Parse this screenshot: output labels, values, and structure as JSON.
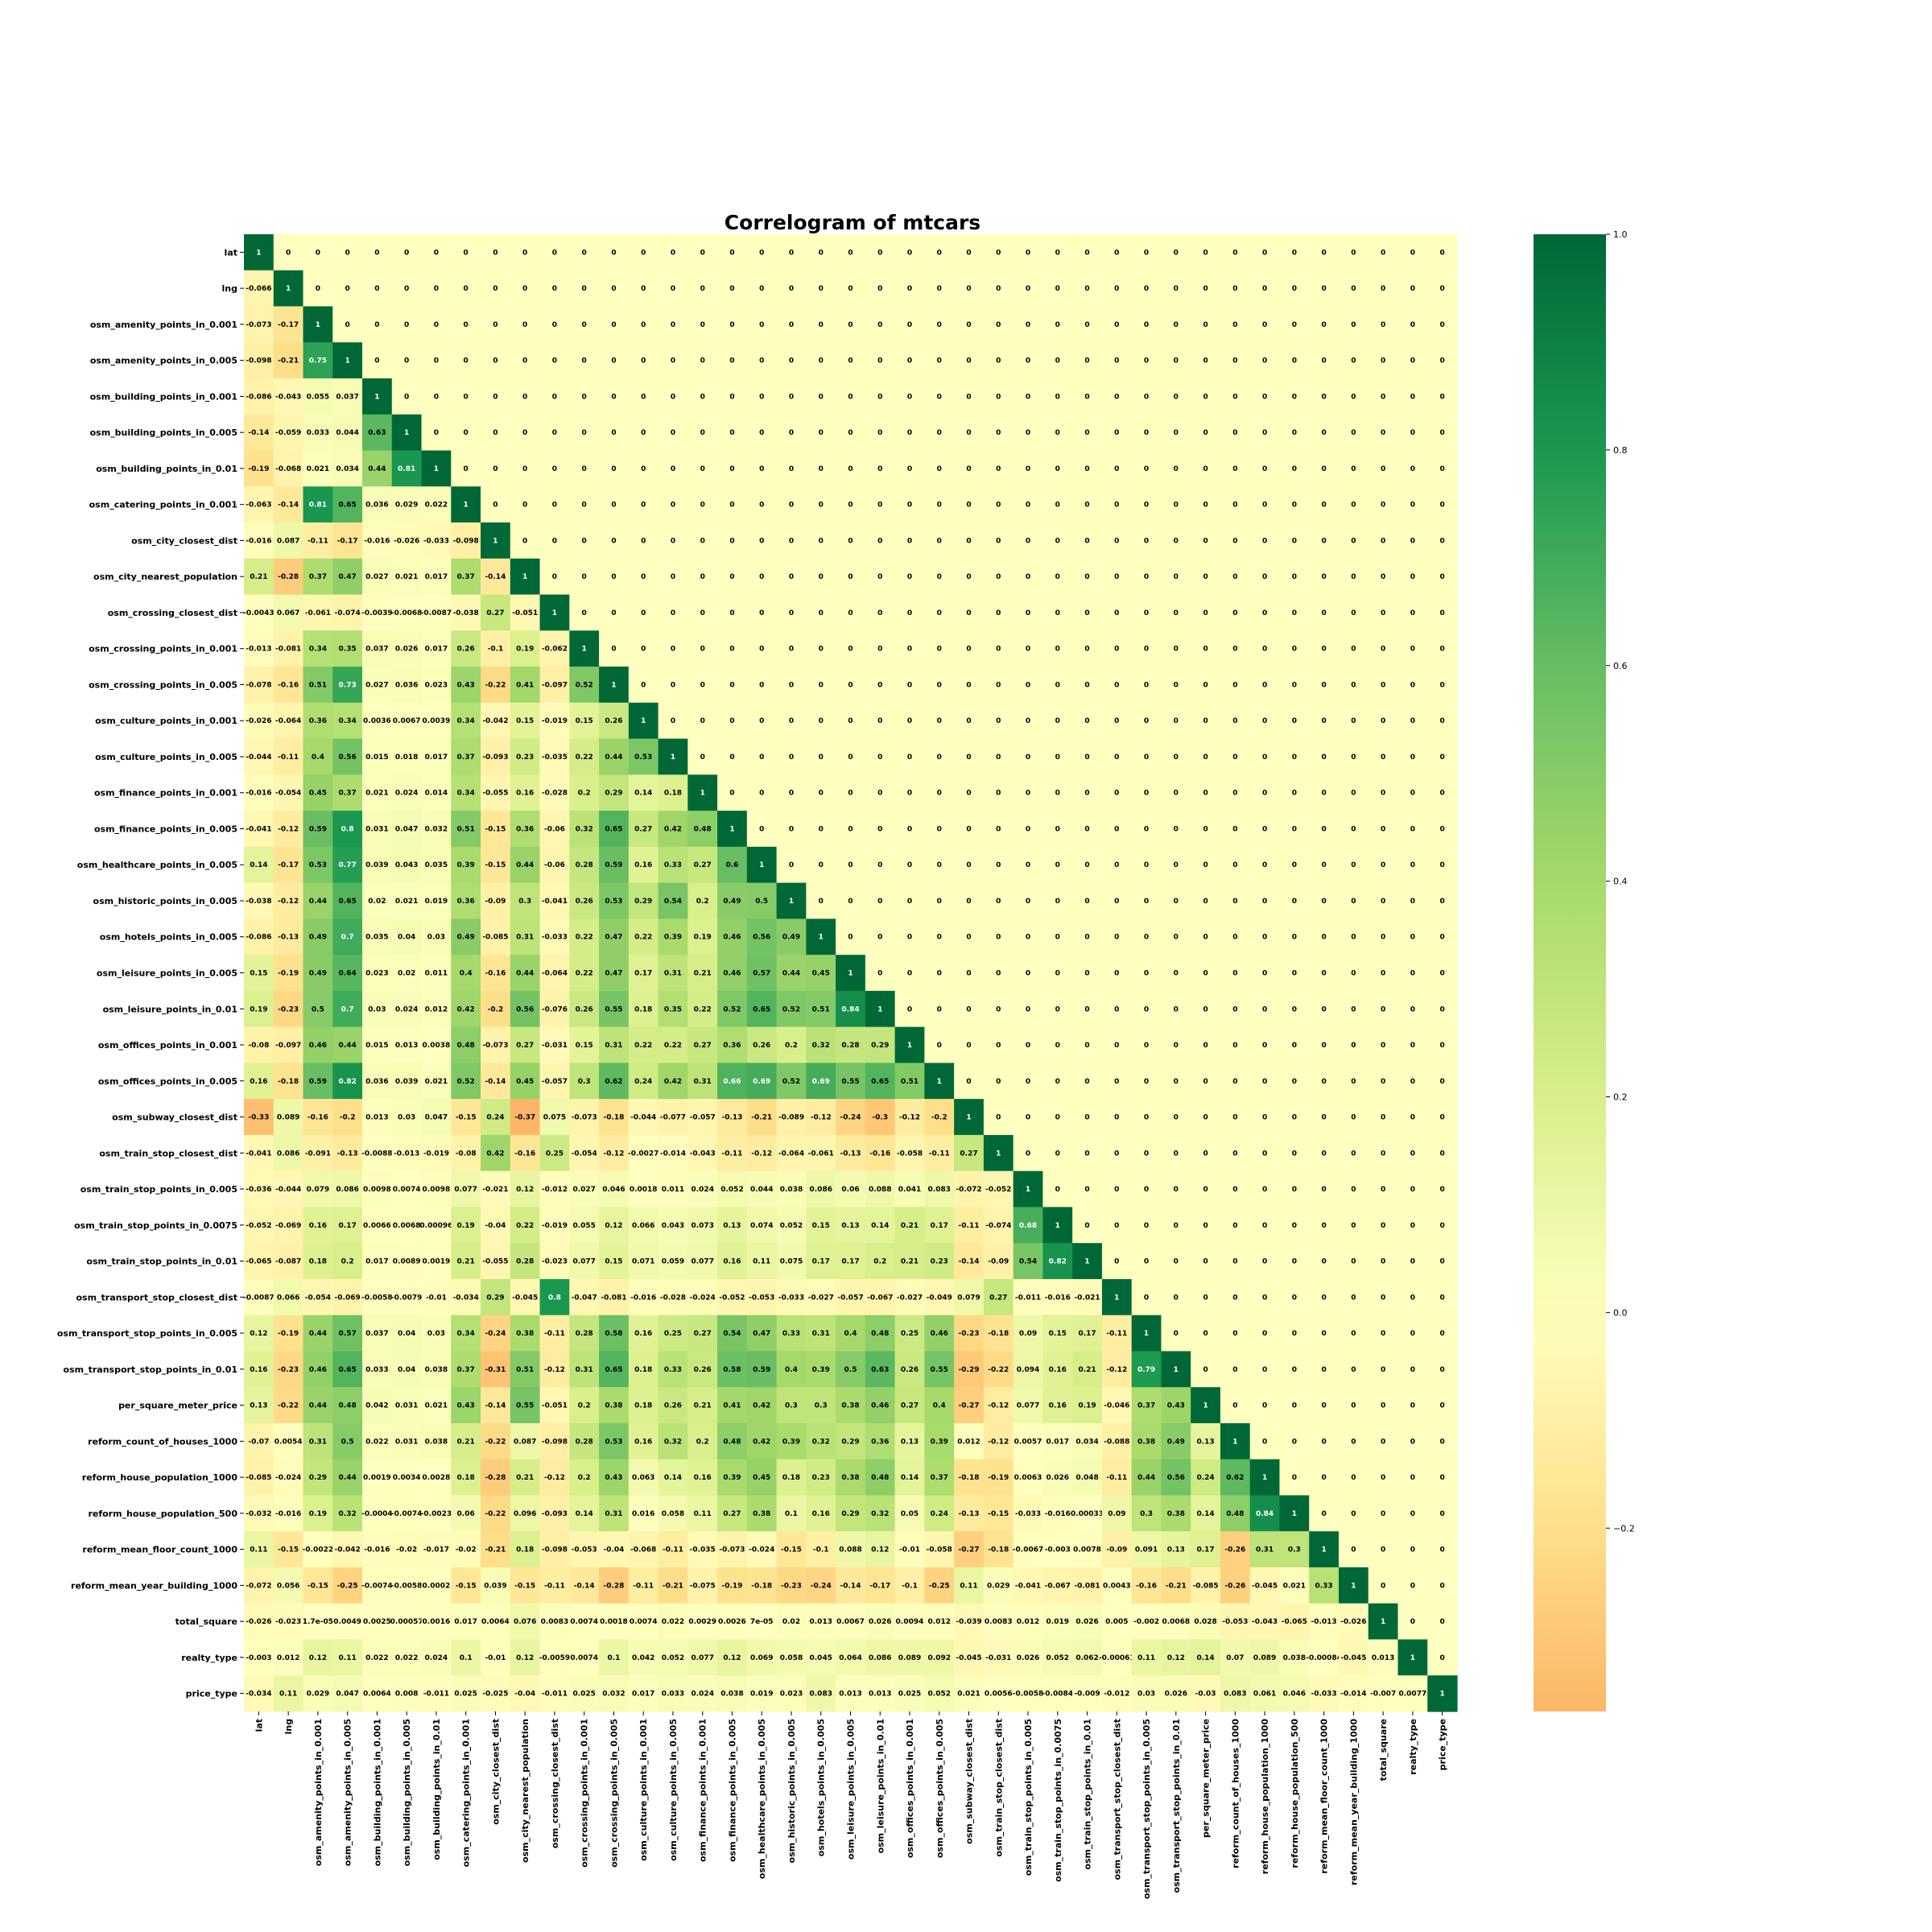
{
  "chart_data": {
    "type": "heatmap",
    "title": "Correlogram of mtcars",
    "xlabel": "",
    "ylabel": "",
    "mask": "upper-triangle-shown-as-0",
    "colormap": "RdYlGn",
    "colorbar": {
      "range": [
        -0.37,
        1.0
      ],
      "ticks": [
        "1.0",
        "0.8",
        "0.6",
        "0.4",
        "0.2",
        "0.0",
        "−0.2"
      ]
    },
    "labels": [
      "lat",
      "lng",
      "osm_amenity_points_in_0.001",
      "osm_amenity_points_in_0.005",
      "osm_building_points_in_0.001",
      "osm_building_points_in_0.005",
      "osm_building_points_in_0.01",
      "osm_catering_points_in_0.001",
      "osm_city_closest_dist",
      "osm_city_nearest_population",
      "osm_crossing_closest_dist",
      "osm_crossing_points_in_0.001",
      "osm_crossing_points_in_0.005",
      "osm_culture_points_in_0.001",
      "osm_culture_points_in_0.005",
      "osm_finance_points_in_0.001",
      "osm_finance_points_in_0.005",
      "osm_healthcare_points_in_0.005",
      "osm_historic_points_in_0.005",
      "osm_hotels_points_in_0.005",
      "osm_leisure_points_in_0.005",
      "osm_leisure_points_in_0.01",
      "osm_offices_points_in_0.001",
      "osm_offices_points_in_0.005",
      "osm_subway_closest_dist",
      "osm_train_stop_closest_dist",
      "osm_train_stop_points_in_0.005",
      "osm_train_stop_points_in_0.0075",
      "osm_train_stop_points_in_0.01",
      "osm_transport_stop_closest_dist",
      "osm_transport_stop_points_in_0.005",
      "osm_transport_stop_points_in_0.01",
      "per_square_meter_price",
      "reform_count_of_houses_1000",
      "reform_house_population_1000",
      "reform_house_population_500",
      "reform_mean_floor_count_1000",
      "reform_mean_year_building_1000",
      "total_square",
      "realty_type",
      "price_type"
    ],
    "lower_triangle": [
      [],
      [
        "-0.066"
      ],
      [
        "-0.073",
        "-0.17"
      ],
      [
        "-0.098",
        "-0.21",
        "0.75"
      ],
      [
        "-0.086",
        "-0.043",
        "0.055",
        "0.037"
      ],
      [
        "-0.14",
        "-0.059",
        "0.033",
        "0.044",
        "0.63"
      ],
      [
        "-0.19",
        "-0.068",
        "0.021",
        "0.034",
        "0.44",
        "0.81"
      ],
      [
        "-0.063",
        "-0.14",
        "0.81",
        "0.65",
        "0.036",
        "0.029",
        "0.022"
      ],
      [
        "-0.016",
        "0.087",
        "-0.11",
        "-0.17",
        "-0.016",
        "-0.026",
        "-0.033",
        "-0.098"
      ],
      [
        "0.21",
        "-0.28",
        "0.37",
        "0.47",
        "0.027",
        "0.021",
        "0.017",
        "0.37",
        "-0.14"
      ],
      [
        "-0.0043",
        "0.067",
        "-0.061",
        "-0.074",
        "-0.0039",
        "-0.0068",
        "-0.0087",
        "-0.038",
        "0.27",
        "-0.051"
      ],
      [
        "-0.013",
        "-0.081",
        "0.34",
        "0.35",
        "0.037",
        "0.026",
        "0.017",
        "0.26",
        "-0.1",
        "0.19",
        "-0.062"
      ],
      [
        "-0.078",
        "-0.16",
        "0.51",
        "0.73",
        "0.027",
        "0.036",
        "0.023",
        "0.43",
        "-0.22",
        "0.41",
        "-0.097",
        "0.52"
      ],
      [
        "-0.026",
        "-0.064",
        "0.36",
        "0.34",
        "0.0036",
        "0.0067",
        "0.0039",
        "0.34",
        "-0.042",
        "0.15",
        "-0.019",
        "0.15",
        "0.26"
      ],
      [
        "-0.044",
        "-0.11",
        "0.4",
        "0.56",
        "0.015",
        "0.018",
        "0.017",
        "0.37",
        "-0.093",
        "0.23",
        "-0.035",
        "0.22",
        "0.44",
        "0.53"
      ],
      [
        "-0.016",
        "-0.054",
        "0.45",
        "0.37",
        "0.021",
        "0.024",
        "0.014",
        "0.34",
        "-0.055",
        "0.16",
        "-0.028",
        "0.2",
        "0.29",
        "0.14",
        "0.18"
      ],
      [
        "-0.041",
        "-0.12",
        "0.59",
        "0.8",
        "0.031",
        "0.047",
        "0.032",
        "0.51",
        "-0.15",
        "0.36",
        "-0.06",
        "0.32",
        "0.65",
        "0.27",
        "0.42",
        "0.48"
      ],
      [
        "0.14",
        "-0.17",
        "0.53",
        "0.77",
        "0.039",
        "0.043",
        "0.035",
        "0.39",
        "-0.15",
        "0.44",
        "-0.06",
        "0.28",
        "0.59",
        "0.16",
        "0.33",
        "0.27",
        "0.6"
      ],
      [
        "-0.038",
        "-0.12",
        "0.44",
        "0.65",
        "0.02",
        "0.021",
        "0.019",
        "0.36",
        "-0.09",
        "0.3",
        "-0.041",
        "0.26",
        "0.53",
        "0.29",
        "0.54",
        "0.2",
        "0.49",
        "0.5"
      ],
      [
        "-0.086",
        "-0.13",
        "0.49",
        "0.7",
        "0.035",
        "0.04",
        "0.03",
        "0.49",
        "-0.085",
        "0.31",
        "-0.033",
        "0.22",
        "0.47",
        "0.22",
        "0.39",
        "0.19",
        "0.46",
        "0.56",
        "0.49"
      ],
      [
        "0.15",
        "-0.19",
        "0.49",
        "0.64",
        "0.023",
        "0.02",
        "0.011",
        "0.4",
        "-0.16",
        "0.44",
        "-0.064",
        "0.22",
        "0.47",
        "0.17",
        "0.31",
        "0.21",
        "0.46",
        "0.57",
        "0.44",
        "0.45"
      ],
      [
        "0.19",
        "-0.23",
        "0.5",
        "0.7",
        "0.03",
        "0.024",
        "0.012",
        "0.42",
        "-0.2",
        "0.56",
        "-0.076",
        "0.26",
        "0.55",
        "0.18",
        "0.35",
        "0.22",
        "0.52",
        "0.65",
        "0.52",
        "0.51",
        "0.84"
      ],
      [
        "-0.08",
        "-0.097",
        "0.46",
        "0.44",
        "0.015",
        "0.013",
        "0.0038",
        "0.48",
        "-0.073",
        "0.27",
        "-0.031",
        "0.15",
        "0.31",
        "0.22",
        "0.22",
        "0.27",
        "0.36",
        "0.26",
        "0.2",
        "0.32",
        "0.28",
        "0.29"
      ],
      [
        "0.16",
        "-0.18",
        "0.59",
        "0.82",
        "0.036",
        "0.039",
        "0.021",
        "0.52",
        "-0.14",
        "0.45",
        "-0.057",
        "0.3",
        "0.62",
        "0.24",
        "0.42",
        "0.31",
        "0.66",
        "0.69",
        "0.52",
        "0.69",
        "0.55",
        "0.65",
        "0.51"
      ],
      [
        "-0.33",
        "0.089",
        "-0.16",
        "-0.2",
        "0.013",
        "0.03",
        "0.047",
        "-0.15",
        "0.24",
        "-0.37",
        "0.075",
        "-0.073",
        "-0.18",
        "-0.044",
        "-0.077",
        "-0.057",
        "-0.13",
        "-0.21",
        "-0.089",
        "-0.12",
        "-0.24",
        "-0.3",
        "-0.12",
        "-0.2"
      ],
      [
        "-0.041",
        "0.086",
        "-0.091",
        "-0.13",
        "-0.0088",
        "-0.013",
        "-0.019",
        "-0.08",
        "0.42",
        "-0.16",
        "0.25",
        "-0.054",
        "-0.12",
        "-0.0027",
        "-0.014",
        "-0.043",
        "-0.11",
        "-0.12",
        "-0.064",
        "-0.061",
        "-0.13",
        "-0.16",
        "-0.058",
        "-0.11",
        "0.27"
      ],
      [
        "-0.036",
        "-0.044",
        "0.079",
        "0.086",
        "0.0098",
        "0.0074",
        "0.0098",
        "0.077",
        "-0.021",
        "0.12",
        "-0.012",
        "0.027",
        "0.046",
        "0.0018",
        "0.011",
        "0.024",
        "0.052",
        "0.044",
        "0.038",
        "0.086",
        "0.06",
        "0.088",
        "0.041",
        "0.083",
        "-0.072",
        "-0.052"
      ],
      [
        "-0.052",
        "-0.069",
        "0.16",
        "0.17",
        "0.0066",
        "0.0068",
        "0.00096",
        "0.19",
        "-0.04",
        "0.22",
        "-0.019",
        "0.055",
        "0.12",
        "0.066",
        "0.043",
        "0.073",
        "0.13",
        "0.074",
        "0.052",
        "0.15",
        "0.13",
        "0.14",
        "0.21",
        "0.17",
        "-0.11",
        "-0.074",
        "0.68"
      ],
      [
        "-0.065",
        "-0.087",
        "0.18",
        "0.2",
        "0.017",
        "0.0089",
        "0.0019",
        "0.21",
        "-0.055",
        "0.28",
        "-0.023",
        "0.077",
        "0.15",
        "0.071",
        "0.059",
        "0.077",
        "0.16",
        "0.11",
        "0.075",
        "0.17",
        "0.17",
        "0.2",
        "0.21",
        "0.23",
        "-0.14",
        "-0.09",
        "0.54",
        "0.82"
      ],
      [
        "-0.0087",
        "0.066",
        "-0.054",
        "-0.069",
        "-0.0058",
        "-0.0079",
        "-0.01",
        "-0.034",
        "0.29",
        "-0.045",
        "0.8",
        "-0.047",
        "-0.081",
        "-0.016",
        "-0.028",
        "-0.024",
        "-0.052",
        "-0.053",
        "-0.033",
        "-0.027",
        "-0.057",
        "-0.067",
        "-0.027",
        "-0.049",
        "0.079",
        "0.27",
        "-0.011",
        "-0.016",
        "-0.021"
      ],
      [
        "0.12",
        "-0.19",
        "0.44",
        "0.57",
        "0.037",
        "0.04",
        "0.03",
        "0.34",
        "-0.24",
        "0.38",
        "-0.11",
        "0.28",
        "0.58",
        "0.16",
        "0.25",
        "0.27",
        "0.54",
        "0.47",
        "0.33",
        "0.31",
        "0.4",
        "0.48",
        "0.25",
        "0.46",
        "-0.23",
        "-0.18",
        "0.09",
        "0.15",
        "0.17",
        "-0.11"
      ],
      [
        "0.16",
        "-0.23",
        "0.46",
        "0.65",
        "0.033",
        "0.04",
        "0.038",
        "0.37",
        "-0.31",
        "0.51",
        "-0.12",
        "0.31",
        "0.65",
        "0.18",
        "0.33",
        "0.26",
        "0.58",
        "0.59",
        "0.4",
        "0.39",
        "0.5",
        "0.63",
        "0.26",
        "0.55",
        "-0.29",
        "-0.22",
        "0.094",
        "0.16",
        "0.21",
        "-0.12",
        "0.79"
      ],
      [
        "0.13",
        "-0.22",
        "0.44",
        "0.48",
        "0.042",
        "0.031",
        "0.021",
        "0.43",
        "-0.14",
        "0.55",
        "-0.051",
        "0.2",
        "0.38",
        "0.18",
        "0.26",
        "0.21",
        "0.41",
        "0.42",
        "0.3",
        "0.3",
        "0.38",
        "0.46",
        "0.27",
        "0.4",
        "-0.27",
        "-0.12",
        "0.077",
        "0.16",
        "0.19",
        "-0.046",
        "0.37",
        "0.43"
      ],
      [
        "-0.07",
        "0.0054",
        "0.31",
        "0.5",
        "0.022",
        "0.031",
        "0.038",
        "0.21",
        "-0.22",
        "0.087",
        "-0.098",
        "0.28",
        "0.53",
        "0.16",
        "0.32",
        "0.2",
        "0.48",
        "0.42",
        "0.39",
        "0.32",
        "0.29",
        "0.36",
        "0.13",
        "0.39",
        "0.012",
        "-0.12",
        "0.0057",
        "0.017",
        "0.034",
        "-0.088",
        "0.38",
        "0.49",
        "0.13"
      ],
      [
        "-0.085",
        "-0.024",
        "0.29",
        "0.44",
        "0.0019",
        "0.0034",
        "0.0028",
        "0.18",
        "-0.28",
        "0.21",
        "-0.12",
        "0.2",
        "0.43",
        "0.063",
        "0.14",
        "0.16",
        "0.39",
        "0.45",
        "0.18",
        "0.23",
        "0.38",
        "0.48",
        "0.14",
        "0.37",
        "-0.18",
        "-0.19",
        "0.0063",
        "0.026",
        "0.048",
        "-0.11",
        "0.44",
        "0.56",
        "0.24",
        "0.62"
      ],
      [
        "-0.032",
        "-0.016",
        "0.19",
        "0.32",
        "-0.0004",
        "-0.0074",
        "-0.0023",
        "0.06",
        "-0.22",
        "0.096",
        "-0.093",
        "0.14",
        "0.31",
        "0.016",
        "0.058",
        "0.11",
        "0.27",
        "0.38",
        "0.1",
        "0.16",
        "0.29",
        "0.32",
        "0.05",
        "0.24",
        "-0.13",
        "-0.15",
        "-0.033",
        "-0.016",
        "0.00033",
        "0.09",
        "0.3",
        "0.38",
        "0.14",
        "0.48",
        "0.84"
      ],
      [
        "0.11",
        "-0.15",
        "-0.0022",
        "-0.042",
        "-0.016",
        "-0.02",
        "-0.017",
        "-0.02",
        "-0.21",
        "0.18",
        "-0.098",
        "-0.053",
        "-0.04",
        "-0.068",
        "-0.11",
        "-0.035",
        "-0.073",
        "-0.024",
        "-0.15",
        "-0.1",
        "0.088",
        "0.12",
        "-0.01",
        "-0.058",
        "-0.27",
        "-0.18",
        "-0.0067",
        "-0.003",
        "0.0078",
        "-0.09",
        "0.091",
        "0.13",
        "0.17",
        "-0.26",
        "0.31",
        "0.3"
      ],
      [
        "-0.072",
        "0.056",
        "-0.15",
        "-0.25",
        "-0.0074",
        "-0.0058",
        "0.0002",
        "-0.15",
        "0.039",
        "-0.15",
        "-0.11",
        "-0.14",
        "-0.28",
        "-0.11",
        "-0.21",
        "-0.075",
        "-0.19",
        "-0.18",
        "-0.23",
        "-0.24",
        "-0.14",
        "-0.17",
        "-0.1",
        "-0.25",
        "0.11",
        "0.029",
        "-0.041",
        "-0.067",
        "-0.081",
        "0.0043",
        "-0.16",
        "-0.21",
        "-0.085",
        "-0.26",
        "-0.045",
        "0.021",
        "0.33"
      ],
      [
        "-0.026",
        "-0.023",
        "1.7e-05",
        "0.0049",
        "0.0025",
        "0.00057",
        "0.0016",
        "0.017",
        "0.0064",
        "0.076",
        "0.0083",
        "0.0074",
        "0.0018",
        "0.0074",
        "0.022",
        "0.0029",
        "0.0026",
        "7e-05",
        "0.02",
        "0.013",
        "0.0067",
        "0.026",
        "0.0094",
        "0.012",
        "-0.039",
        "0.0083",
        "0.012",
        "0.019",
        "0.026",
        "0.005",
        "-0.002",
        "0.0068",
        "0.028",
        "-0.053",
        "-0.043",
        "-0.065",
        "-0.013",
        "-0.026"
      ],
      [
        "-0.003",
        "0.012",
        "0.12",
        "0.11",
        "0.022",
        "0.022",
        "0.024",
        "0.1",
        "-0.01",
        "0.12",
        "-0.0059",
        "0.0074",
        "0.1",
        "0.042",
        "0.052",
        "0.077",
        "0.12",
        "0.069",
        "0.058",
        "0.045",
        "0.064",
        "0.086",
        "0.089",
        "0.092",
        "-0.045",
        "-0.031",
        "0.026",
        "0.052",
        "0.062",
        "-0.00061",
        "0.11",
        "0.12",
        "0.14",
        "0.07",
        "0.089",
        "0.038",
        "-0.00084",
        "-0.045",
        "0.013"
      ],
      [
        "-0.034",
        "0.11",
        "0.029",
        "0.047",
        "0.0064",
        "0.008",
        "-0.011",
        "0.025",
        "-0.025",
        "-0.04",
        "-0.011",
        "0.025",
        "0.032",
        "0.017",
        "0.033",
        "0.024",
        "0.038",
        "0.019",
        "0.023",
        "0.083",
        "0.013",
        "0.013",
        "0.025",
        "0.052",
        "0.021",
        "0.0056",
        "-0.0058",
        "-0.0084",
        "-0.009",
        "-0.012",
        "0.03",
        "0.026",
        "-0.03",
        "0.083",
        "0.061",
        "0.046",
        "-0.033",
        "-0.014",
        "-0.007",
        "0.0077"
      ]
    ]
  }
}
